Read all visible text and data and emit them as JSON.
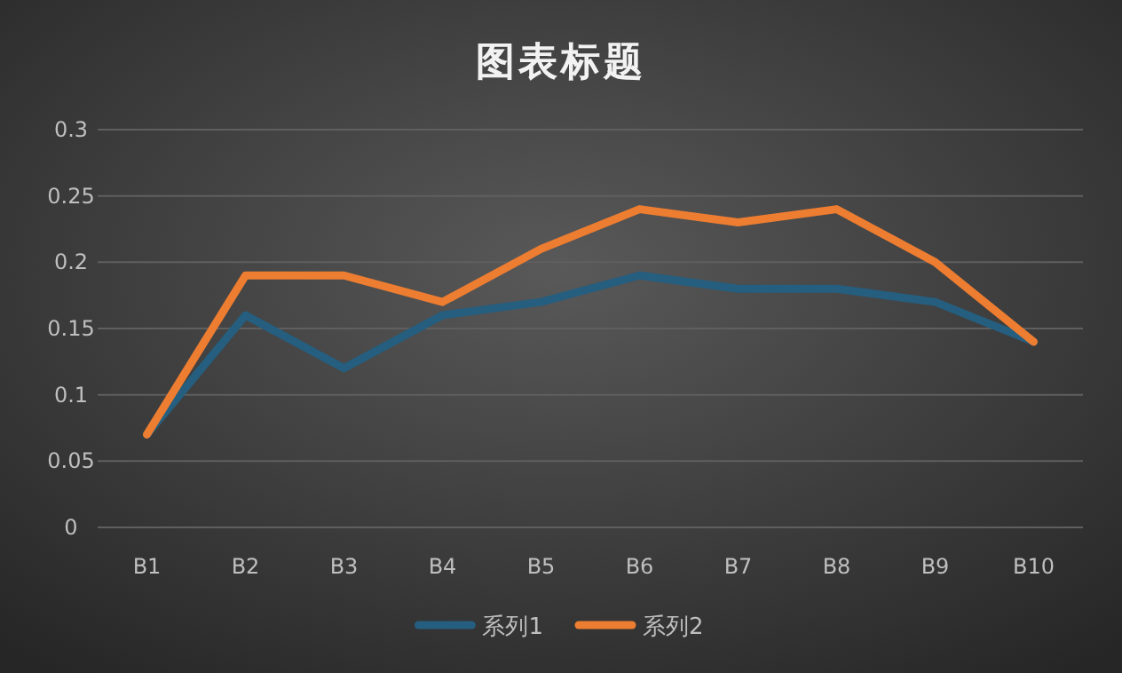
{
  "chart_data": {
    "type": "line",
    "title": "图表标题",
    "categories": [
      "B1",
      "B2",
      "B3",
      "B4",
      "B5",
      "B6",
      "B7",
      "B8",
      "B9",
      "B10"
    ],
    "series": [
      {
        "name": "系列1",
        "color": "#255e7e",
        "values": [
          0.07,
          0.16,
          0.12,
          0.16,
          0.17,
          0.19,
          0.18,
          0.18,
          0.17,
          0.14
        ]
      },
      {
        "name": "系列2",
        "color": "#ed7d31",
        "values": [
          0.07,
          0.19,
          0.19,
          0.17,
          0.21,
          0.24,
          0.23,
          0.24,
          0.2,
          0.14
        ]
      }
    ],
    "ylim": [
      0,
      0.3
    ],
    "yticks": [
      0,
      0.05,
      0.1,
      0.15,
      0.2,
      0.25,
      0.3
    ],
    "grid": "y",
    "legend": "bottom",
    "marker": "none",
    "line_style": "solid"
  }
}
